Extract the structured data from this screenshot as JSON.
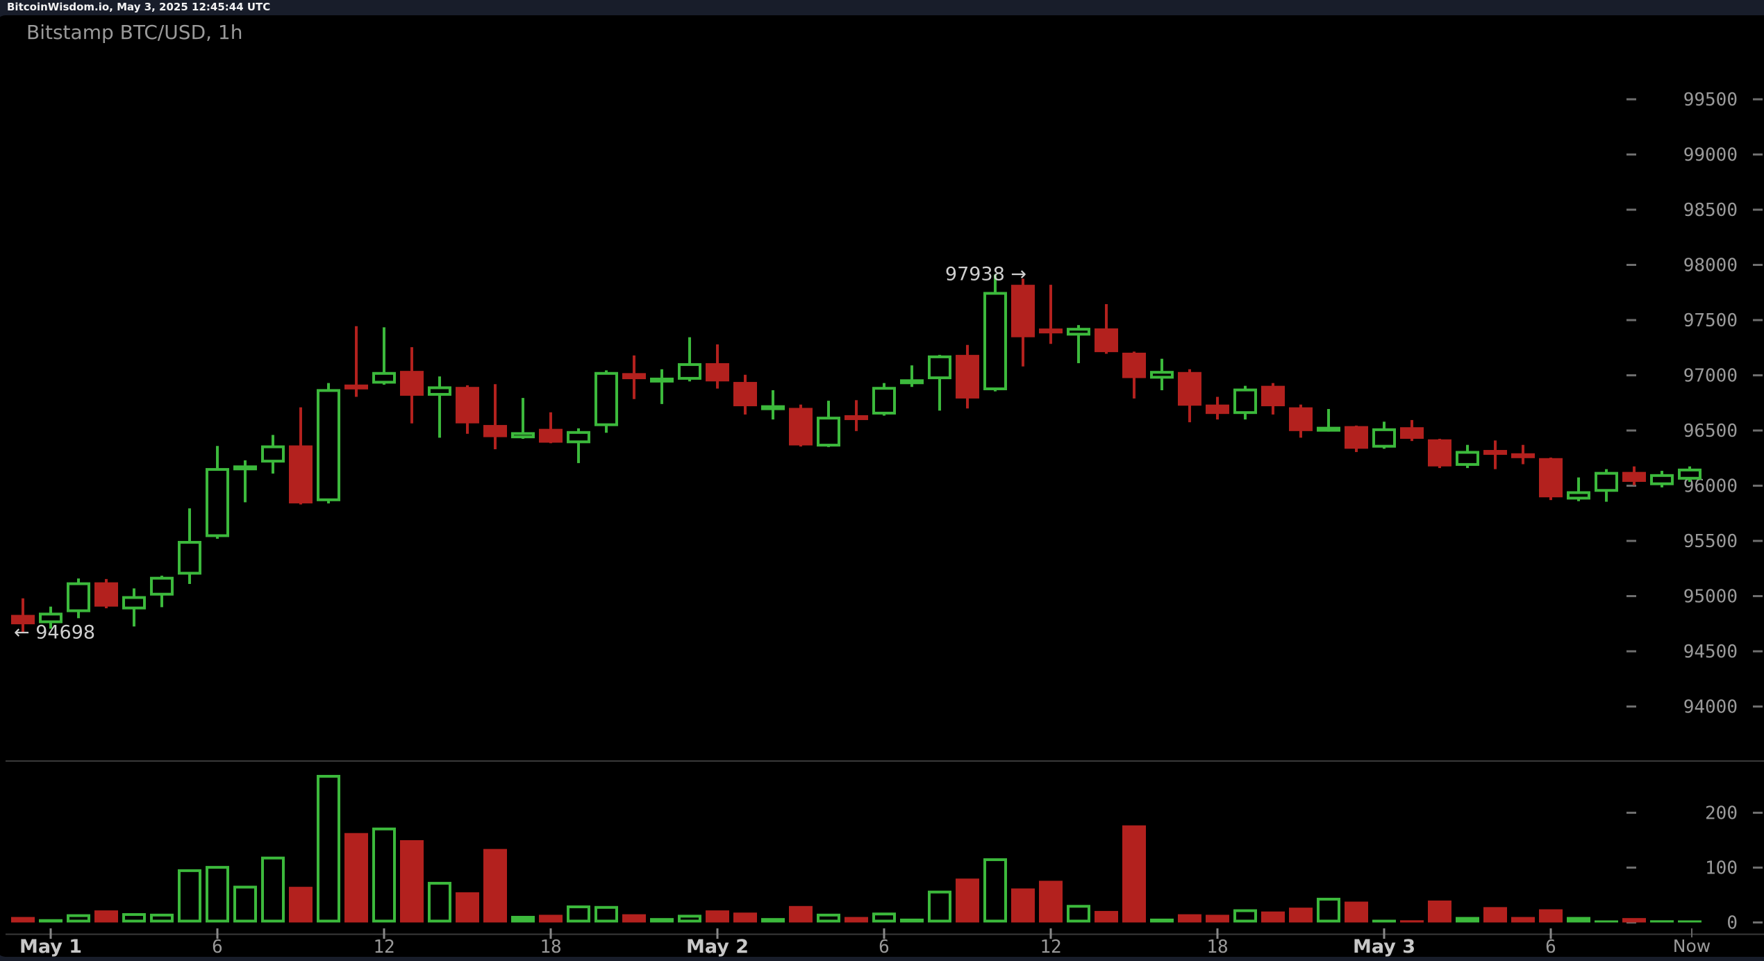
{
  "header": {
    "title": "BitcoinWisdom.io, May 3, 2025 12:45:44 UTC"
  },
  "chart": {
    "title": "Bitstamp BTC/USD, 1h"
  },
  "colors": {
    "background": "#000000",
    "frame": "#181d2a",
    "up": "#3cb93c",
    "down": "#b3211e",
    "label": "#9a9a9a",
    "day_label": "#c8c8c8",
    "annotation": "#cfcfcf",
    "divider": "#3a3a3a",
    "tick": "#6e6e6e"
  },
  "chart_data": {
    "type": "candlestick",
    "exchange": "Bitstamp",
    "symbol": "BTC/USD",
    "interval": "1h",
    "title": "Bitstamp BTC/USD, 1h",
    "start_time": "May 1 00:00 UTC",
    "end_time": "May 3 12:00 UTC",
    "legend_position": "none",
    "grid": false,
    "price_axis": {
      "unit": "USD",
      "ticks": [
        99500,
        99000,
        98500,
        98000,
        97500,
        97000,
        96500,
        96000,
        95500,
        95000,
        94500,
        94000
      ]
    },
    "volume_axis": {
      "ticks": [
        200,
        100,
        0
      ]
    },
    "time_ticks": [
      {
        "label": "May 1",
        "index": 1,
        "day": true
      },
      {
        "label": "6",
        "index": 7,
        "day": false
      },
      {
        "label": "12",
        "index": 13,
        "day": false
      },
      {
        "label": "18",
        "index": 19,
        "day": false
      },
      {
        "label": "May 2",
        "index": 25,
        "day": true
      },
      {
        "label": "6",
        "index": 31,
        "day": false
      },
      {
        "label": "12",
        "index": 37,
        "day": false
      },
      {
        "label": "18",
        "index": 43,
        "day": false
      },
      {
        "label": "May 3",
        "index": 49,
        "day": true
      },
      {
        "label": "6",
        "index": 55,
        "day": false
      }
    ],
    "now_tick": {
      "label": "Now",
      "index": 60
    },
    "annotations": {
      "low": {
        "display": "← 94698",
        "value": 94698,
        "side": "left"
      },
      "high": {
        "display": "97938 →",
        "value": 97938,
        "side": "right"
      }
    },
    "candles_format": [
      "open",
      "high",
      "low",
      "close",
      "volume",
      "direction"
    ],
    "candles": [
      [
        94855,
        95005,
        94698,
        94770,
        10,
        "down"
      ],
      [
        94780,
        94930,
        94730,
        94875,
        6,
        "up"
      ],
      [
        94880,
        95185,
        94825,
        95150,
        15,
        "up"
      ],
      [
        95150,
        95180,
        94915,
        94930,
        22,
        "down"
      ],
      [
        94905,
        95095,
        94750,
        95025,
        17,
        "up"
      ],
      [
        95030,
        95210,
        94925,
        95200,
        16,
        "up"
      ],
      [
        95220,
        95820,
        95135,
        95525,
        97,
        "up"
      ],
      [
        95560,
        96385,
        95545,
        96185,
        103,
        "up"
      ],
      [
        96190,
        96255,
        95875,
        96190,
        67,
        "up"
      ],
      [
        96235,
        96485,
        96135,
        96390,
        120,
        "up"
      ],
      [
        96390,
        96735,
        95855,
        95865,
        65,
        "down"
      ],
      [
        95885,
        96955,
        95865,
        96900,
        269,
        "up"
      ],
      [
        96925,
        97470,
        96830,
        96920,
        163,
        "down"
      ],
      [
        96950,
        97460,
        96940,
        97055,
        173,
        "up"
      ],
      [
        97065,
        97280,
        96590,
        96840,
        150,
        "down"
      ],
      [
        96840,
        97015,
        96460,
        96925,
        74,
        "up"
      ],
      [
        96920,
        96935,
        96495,
        96590,
        55,
        "down"
      ],
      [
        96575,
        96945,
        96355,
        96465,
        134,
        "down"
      ],
      [
        96455,
        96820,
        96450,
        96510,
        12,
        "up"
      ],
      [
        96540,
        96690,
        96410,
        96415,
        14,
        "down"
      ],
      [
        96410,
        96545,
        96230,
        96520,
        31,
        "up"
      ],
      [
        96565,
        97070,
        96505,
        97055,
        30,
        "up"
      ],
      [
        97045,
        97205,
        96810,
        96990,
        15,
        "down"
      ],
      [
        96985,
        97080,
        96765,
        96985,
        8,
        "up"
      ],
      [
        96985,
        97370,
        96970,
        97135,
        14,
        "up"
      ],
      [
        97135,
        97305,
        96905,
        96970,
        22,
        "down"
      ],
      [
        96965,
        97030,
        96670,
        96745,
        18,
        "down"
      ],
      [
        96735,
        96890,
        96625,
        96735,
        8,
        "up"
      ],
      [
        96730,
        96760,
        96380,
        96390,
        30,
        "down"
      ],
      [
        96380,
        96795,
        96375,
        96650,
        16,
        "up"
      ],
      [
        96645,
        96800,
        96520,
        96645,
        10,
        "down"
      ],
      [
        96670,
        96955,
        96660,
        96920,
        18,
        "up"
      ],
      [
        96970,
        97115,
        96920,
        96970,
        7,
        "up"
      ],
      [
        96990,
        97210,
        96705,
        97205,
        58,
        "up"
      ],
      [
        97210,
        97300,
        96725,
        96815,
        80,
        "down"
      ],
      [
        96890,
        97938,
        96880,
        97780,
        117,
        "up"
      ],
      [
        97845,
        97900,
        97105,
        97370,
        62,
        "down"
      ],
      [
        97430,
        97845,
        97310,
        97430,
        76,
        "down"
      ],
      [
        97385,
        97480,
        97135,
        97455,
        32,
        "up"
      ],
      [
        97450,
        97670,
        97220,
        97235,
        21,
        "down"
      ],
      [
        97230,
        97240,
        96815,
        97000,
        177,
        "down"
      ],
      [
        96995,
        97175,
        96890,
        97065,
        7,
        "up"
      ],
      [
        97055,
        97080,
        96600,
        96750,
        15,
        "down"
      ],
      [
        96760,
        96830,
        96625,
        96675,
        14,
        "down"
      ],
      [
        96675,
        96930,
        96625,
        96905,
        24,
        "up"
      ],
      [
        96930,
        96955,
        96670,
        96745,
        20,
        "down"
      ],
      [
        96735,
        96760,
        96460,
        96520,
        27,
        "down"
      ],
      [
        96540,
        96720,
        96515,
        96540,
        45,
        "up"
      ],
      [
        96565,
        96570,
        96330,
        96360,
        38,
        "down"
      ],
      [
        96370,
        96605,
        96360,
        96545,
        5,
        "up"
      ],
      [
        96555,
        96620,
        96430,
        96450,
        4,
        "down"
      ],
      [
        96445,
        96450,
        96185,
        96200,
        40,
        "down"
      ],
      [
        96205,
        96395,
        96185,
        96340,
        10,
        "up"
      ],
      [
        96330,
        96435,
        96175,
        96330,
        28,
        "down"
      ],
      [
        96300,
        96395,
        96220,
        96300,
        10,
        "down"
      ],
      [
        96275,
        96280,
        95895,
        95920,
        24,
        "down"
      ],
      [
        95900,
        96100,
        95885,
        95975,
        10,
        "up"
      ],
      [
        95970,
        96175,
        95880,
        96150,
        3,
        "up"
      ],
      [
        96150,
        96200,
        96030,
        96060,
        8,
        "down"
      ],
      [
        96030,
        96160,
        96010,
        96130,
        4,
        "up"
      ],
      [
        96080,
        96200,
        96060,
        96180,
        3,
        "up"
      ]
    ]
  }
}
